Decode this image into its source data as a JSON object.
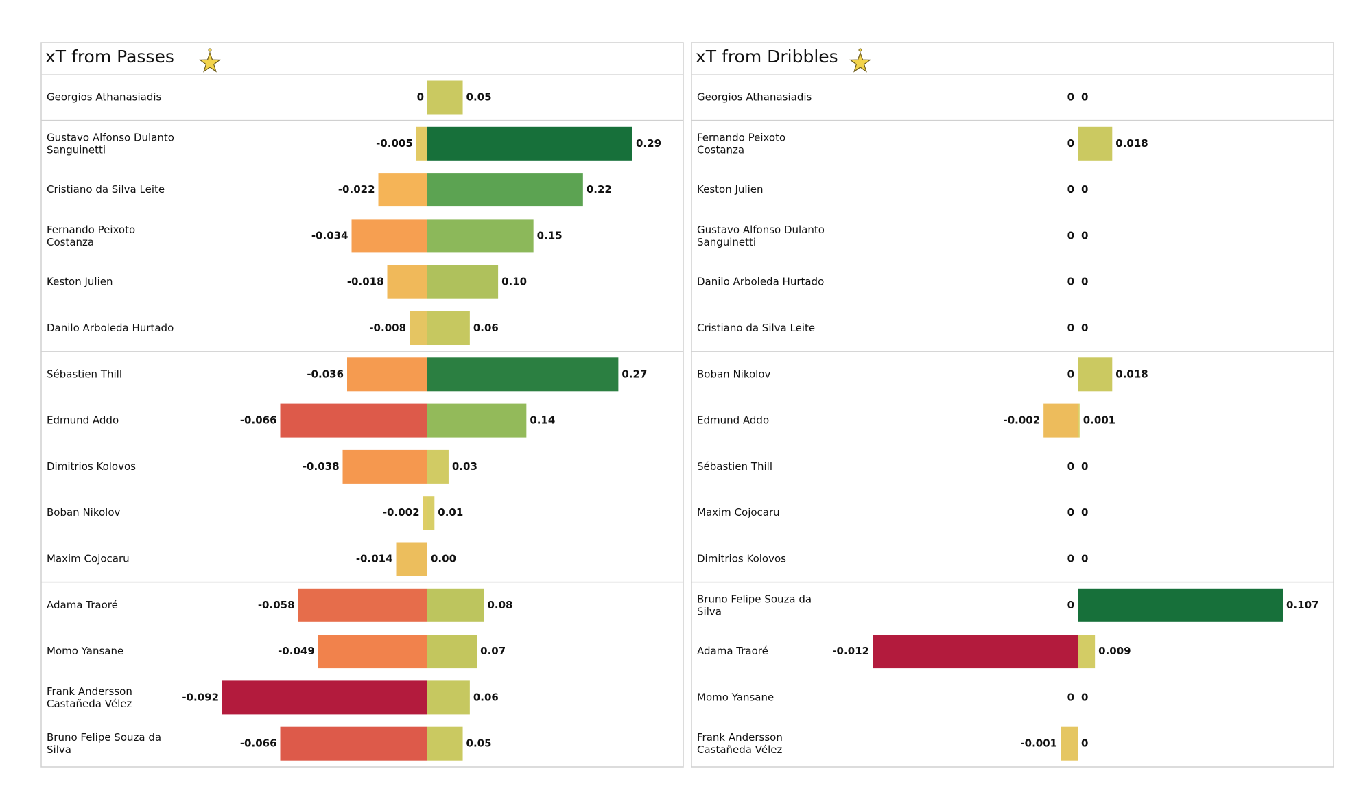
{
  "chart_data": [
    {
      "type": "diverging_bar",
      "title": "xT from Passes",
      "categories": [
        "Georgios Athanasiadis",
        "Gustavo Alfonso Dulanto Sanguinetti",
        "Cristiano da Silva Leite",
        "Fernando Peixoto Costanza",
        "Keston Julien",
        "Danilo Arboleda Hurtado",
        "Sébastien Thill",
        "Edmund Addo",
        "Dimitrios Kolovos",
        "Boban Nikolov",
        "Maxim Cojocaru",
        "Adama Traoré",
        "Momo Yansane",
        "Frank Andersson Castañeda Vélez",
        "Bruno Felipe Souza da Silva"
      ],
      "series": [
        {
          "values": [
            0,
            -0.005,
            -0.022,
            -0.034,
            -0.018,
            -0.008,
            -0.036,
            -0.066,
            -0.038,
            -0.002,
            -0.014,
            -0.058,
            -0.049,
            -0.092,
            -0.066
          ]
        },
        {
          "values": [
            0.05,
            0.29,
            0.22,
            0.15,
            0.1,
            0.06,
            0.27,
            0.14,
            0.03,
            0.01,
            0,
            0.08,
            0.07,
            0.06,
            0.05
          ],
          "value_labels": [
            "0.05",
            "0.29",
            "0.22",
            "0.15",
            "0.10",
            "0.06",
            "0.27",
            "0.14",
            "0.03",
            "0.01",
            "0.00",
            "0.08",
            "0.07",
            "0.06",
            "0.05"
          ]
        }
      ],
      "colormap": [
        "#b31b3d",
        "#d9534a",
        "#f5894c",
        "#f6b356",
        "#dccf68",
        "#c2c65e",
        "#8fb95a",
        "#5ea553",
        "#17703a"
      ]
    },
    {
      "type": "diverging_bar",
      "title": "xT from Dribbles",
      "categories": [
        "Georgios Athanasiadis",
        "Fernando Peixoto Costanza",
        "Keston Julien",
        "Gustavo Alfonso Dulanto Sanguinetti",
        "Danilo Arboleda Hurtado",
        "Cristiano da Silva Leite",
        "Boban Nikolov",
        "Edmund Addo",
        "Sébastien Thill",
        "Maxim Cojocaru",
        "Dimitrios Kolovos",
        "Bruno Felipe Souza da Silva",
        "Adama Traoré",
        "Momo Yansane",
        "Frank Andersson Castañeda Vélez"
      ],
      "series": [
        {
          "values": [
            0,
            0,
            0,
            0,
            0,
            0,
            0,
            -0.002,
            0,
            0,
            0,
            0,
            -0.012,
            0,
            -0.001
          ]
        },
        {
          "values": [
            0,
            0.018,
            0,
            0,
            0,
            0,
            0.018,
            0.001,
            0,
            0,
            0,
            0.107,
            0.009,
            0,
            0
          ]
        }
      ],
      "colormap": [
        "#b31b3d",
        "#d9534a",
        "#f5894c",
        "#f6b356",
        "#dccf68",
        "#c2c65e",
        "#8fb95a",
        "#5ea553",
        "#17703a"
      ]
    }
  ]
}
